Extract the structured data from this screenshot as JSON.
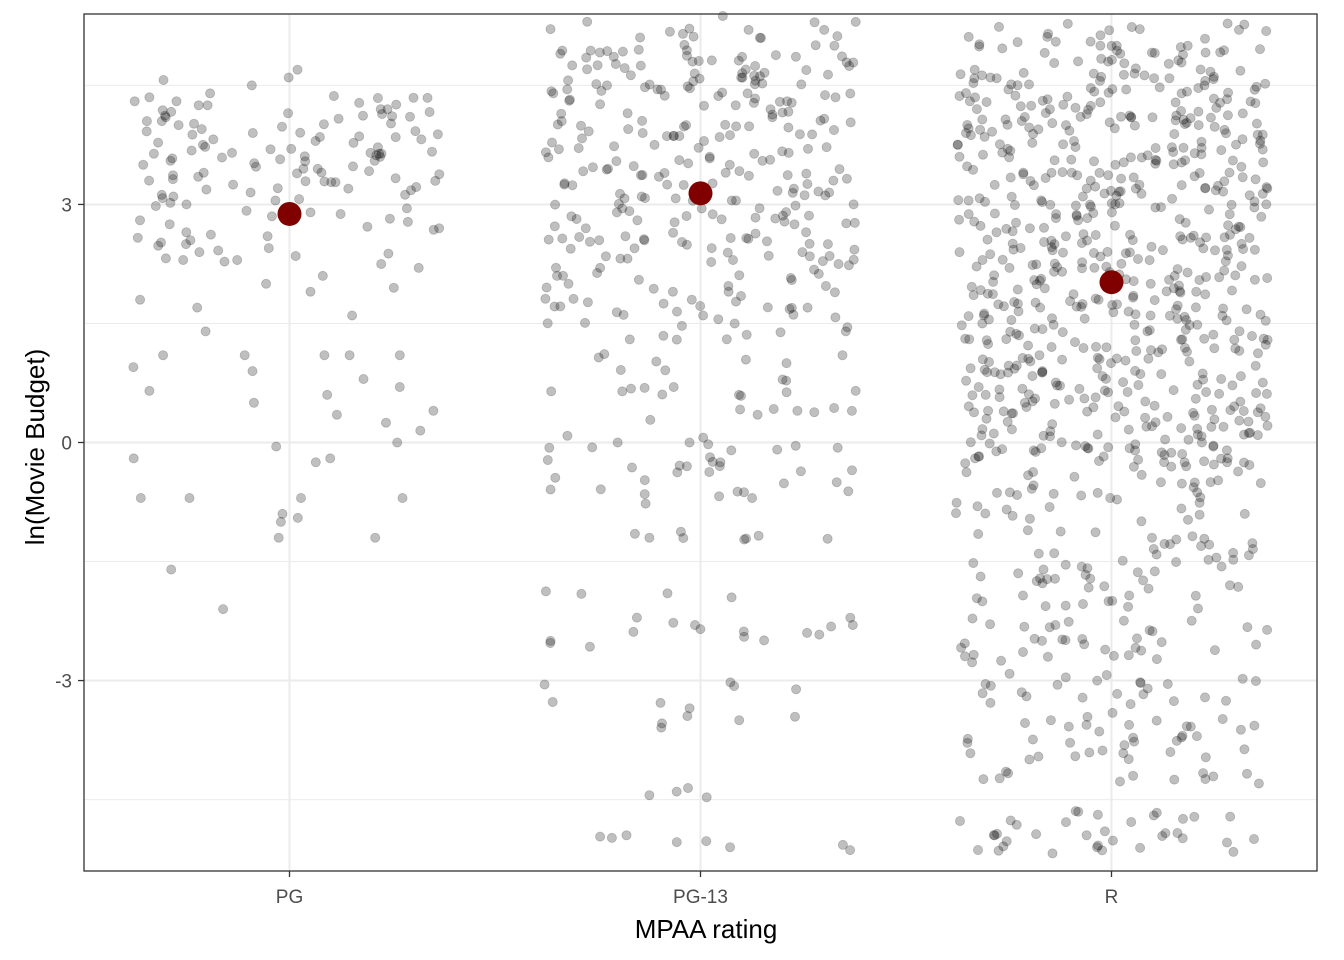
{
  "chart_data": {
    "type": "scatter",
    "title": "",
    "xlabel": "MPAA rating",
    "ylabel": "ln(Movie Budget)",
    "categories": [
      "PG",
      "PG-13",
      "R"
    ],
    "ylim": [
      -5.4,
      5.4
    ],
    "y_ticks": [
      -3,
      0,
      3
    ],
    "y_minor_ticks": [
      -4.5,
      -1.5,
      1.5,
      4.5
    ],
    "grid": true,
    "legend": "none",
    "jitter": true,
    "point_color": "#000000",
    "point_opacity": 0.25,
    "mean_color": "#800000",
    "means": [
      {
        "category": "PG",
        "value": 2.88
      },
      {
        "category": "PG-13",
        "value": 3.14
      },
      {
        "category": "R",
        "value": 2.02
      }
    ],
    "series": [
      {
        "category": "PG",
        "count": 180,
        "values": [
          4.6,
          4.5,
          4.4,
          4.35,
          4.3,
          4.3,
          4.28,
          4.25,
          4.2,
          4.2,
          4.15,
          4.12,
          4.1,
          4.08,
          4.05,
          4.02,
          4.0,
          3.98,
          3.95,
          3.92,
          3.9,
          3.88,
          3.85,
          3.82,
          3.8,
          3.78,
          3.75,
          3.72,
          3.7,
          3.68,
          3.65,
          3.62,
          3.6,
          3.58,
          3.55,
          3.52,
          3.5,
          3.48,
          3.45,
          3.42,
          3.4,
          3.38,
          3.35,
          3.32,
          3.3,
          3.28,
          3.25,
          3.22,
          3.2,
          3.18,
          3.15,
          3.12,
          3.1,
          3.08,
          3.05,
          3.02,
          3.0,
          2.98,
          2.95,
          2.92,
          2.9,
          2.88,
          2.85,
          2.82,
          2.8,
          2.78,
          2.75,
          2.72,
          2.7,
          2.68,
          2.65,
          2.62,
          2.6,
          2.58,
          2.55,
          2.52,
          2.5,
          2.48,
          2.45,
          2.42,
          2.4,
          2.38,
          2.35,
          2.32,
          2.3,
          2.3,
          2.28,
          2.25,
          2.2,
          2.1,
          2.0,
          1.95,
          1.9,
          1.8,
          1.7,
          1.6,
          1.4,
          1.1,
          1.1,
          1.1,
          1.1,
          1.1,
          0.95,
          0.9,
          0.8,
          0.7,
          0.65,
          0.6,
          0.5,
          0.4,
          0.35,
          0.25,
          0.15,
          0.0,
          -0.05,
          -0.2,
          -0.2,
          -0.25,
          -0.7,
          -0.7,
          -0.7,
          -0.7,
          -0.9,
          -0.95,
          -1.0,
          -1.2,
          -1.2,
          -1.6,
          -2.1
        ]
      },
      {
        "category": "PG-13",
        "count": 420,
        "values": [
          5.3,
          5.2,
          5.1,
          5.0,
          4.95,
          4.9,
          4.85,
          4.8,
          4.75,
          4.7,
          4.65,
          4.6,
          4.55,
          4.5,
          4.45,
          4.4,
          4.35,
          4.3,
          4.25,
          4.2,
          4.15,
          4.1,
          4.05,
          4.0,
          3.95,
          3.9,
          3.85,
          3.8,
          3.75,
          3.7,
          3.65,
          3.6,
          3.55,
          3.5,
          3.45,
          3.4,
          3.35,
          3.3,
          3.25,
          3.2,
          3.15,
          3.1,
          3.05,
          3.0,
          2.95,
          2.9,
          2.85,
          2.8,
          2.75,
          2.7,
          2.65,
          2.6,
          2.55,
          2.5,
          2.45,
          2.4,
          2.35,
          2.3,
          2.25,
          2.2,
          2.1,
          2.05,
          2.0,
          1.9,
          1.8,
          1.75,
          1.7,
          1.65,
          1.6,
          1.5,
          1.4,
          1.3,
          1.1,
          1.0,
          0.7,
          0.65,
          0.6,
          0.4,
          0.35,
          0.0,
          0.0,
          -0.1,
          -0.25,
          -0.3,
          -0.35,
          -0.5,
          -0.65,
          -0.7,
          -1.15,
          -1.2,
          -1.9,
          -2.3,
          -2.3,
          -2.45,
          -2.5,
          -3.05,
          -3.35,
          -3.5,
          -4.4,
          -4.95,
          -5.1
        ]
      },
      {
        "category": "R",
        "count": 900,
        "values": [
          5.2,
          5.0,
          4.9,
          4.7,
          4.6,
          4.5,
          4.4,
          4.3,
          4.2,
          4.1,
          4.0,
          3.9,
          3.8,
          3.7,
          3.6,
          3.5,
          3.4,
          3.3,
          3.2,
          3.1,
          3.0,
          2.9,
          2.8,
          2.7,
          2.6,
          2.5,
          2.4,
          2.3,
          2.2,
          2.1,
          2.0,
          1.9,
          1.8,
          1.7,
          1.6,
          1.5,
          1.4,
          1.3,
          1.2,
          1.1,
          1.0,
          0.9,
          0.8,
          0.7,
          0.6,
          0.5,
          0.4,
          0.3,
          0.2,
          0.1,
          0.0,
          -0.1,
          -0.2,
          -0.3,
          -0.5,
          -0.7,
          -0.9,
          -1.2,
          -1.4,
          -1.6,
          -1.8,
          -2.0,
          -2.3,
          -2.5,
          -2.7,
          -3.0,
          -3.2,
          -3.5,
          -3.7,
          -3.9,
          -4.2,
          -4.7,
          -4.9,
          -5.1
        ]
      }
    ]
  }
}
